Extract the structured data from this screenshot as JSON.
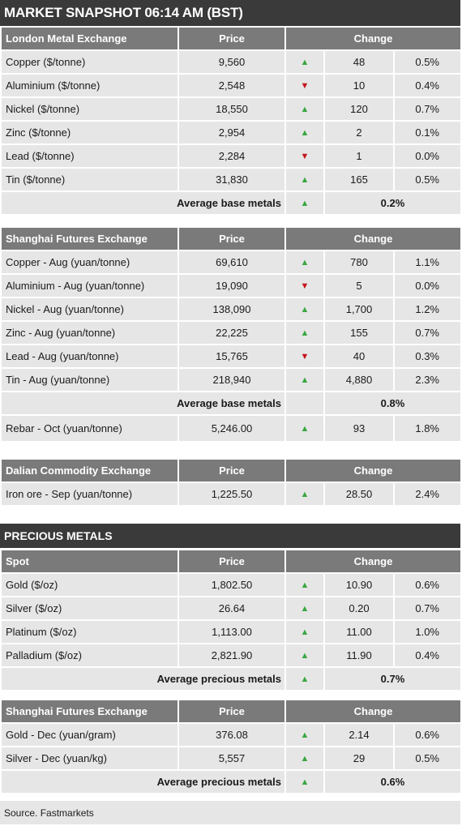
{
  "title": "MARKET SNAPSHOT 06:14 AM (BST)",
  "precious_title": "PRECIOUS METALS",
  "source": "Source. Fastmarkets",
  "colors": {
    "up": "#3aa641",
    "down": "#c4161c",
    "header": "#7a7a7a",
    "band": "#3a3a3a",
    "row": "#e6e6e6"
  },
  "lme": {
    "header": {
      "name": "London Metal Exchange",
      "price": "Price",
      "change": "Change"
    },
    "rows": [
      {
        "name": "Copper ($/tonne)",
        "price": "9,560",
        "dir": "up",
        "arrow": "▲",
        "change": "48",
        "pct": "0.5%"
      },
      {
        "name": "Aluminium ($/tonne)",
        "price": "2,548",
        "dir": "down",
        "arrow": "▼",
        "change": "10",
        "pct": "0.4%"
      },
      {
        "name": "Nickel ($/tonne)",
        "price": "18,550",
        "dir": "up",
        "arrow": "▲",
        "change": "120",
        "pct": "0.7%"
      },
      {
        "name": "Zinc ($/tonne)",
        "price": "2,954",
        "dir": "up",
        "arrow": "▲",
        "change": "2",
        "pct": "0.1%"
      },
      {
        "name": "Lead ($/tonne)",
        "price": "2,284",
        "dir": "down",
        "arrow": "▼",
        "change": "1",
        "pct": "0.0%"
      },
      {
        "name": "Tin ($/tonne)",
        "price": "31,830",
        "dir": "up",
        "arrow": "▲",
        "change": "165",
        "pct": "0.5%"
      }
    ],
    "avg": {
      "label": "Average base metals",
      "arrow": "▲",
      "value": "0.2%"
    }
  },
  "shfe": {
    "header": {
      "name": "Shanghai Futures Exchange",
      "price": "Price",
      "change": "Change"
    },
    "rows": [
      {
        "name": "Copper - Aug (yuan/tonne)",
        "price": "69,610",
        "dir": "up",
        "arrow": "▲",
        "change": "780",
        "pct": "1.1%"
      },
      {
        "name": "Aluminium - Aug (yuan/tonne)",
        "price": "19,090",
        "dir": "down",
        "arrow": "▼",
        "change": "5",
        "pct": "0.0%"
      },
      {
        "name": "Nickel - Aug (yuan/tonne)",
        "price": "138,090",
        "dir": "up",
        "arrow": "▲",
        "change": "1,700",
        "pct": "1.2%"
      },
      {
        "name": "Zinc - Aug (yuan/tonne)",
        "price": "22,225",
        "dir": "up",
        "arrow": "▲",
        "change": "155",
        "pct": "0.7%"
      },
      {
        "name": "Lead - Aug (yuan/tonne)",
        "price": "15,765",
        "dir": "down",
        "arrow": "▼",
        "change": "40",
        "pct": "0.3%"
      },
      {
        "name": "Tin - Aug (yuan/tonne)",
        "price": "218,940",
        "dir": "up",
        "arrow": "▲",
        "change": "4,880",
        "pct": "2.3%"
      }
    ],
    "avg": {
      "label": "Average base metals",
      "value": "0.8%"
    },
    "rebar": {
      "name": "Rebar - Oct (yuan/tonne)",
      "price": "5,246.00",
      "dir": "up",
      "arrow": "▲",
      "change": "93",
      "pct": "1.8%"
    }
  },
  "dce": {
    "header": {
      "name": "Dalian Commodity Exchange",
      "price": "Price",
      "change": "Change"
    },
    "rows": [
      {
        "name": "Iron ore - Sep (yuan/tonne)",
        "price": "1,225.50",
        "dir": "up",
        "arrow": "▲",
        "change": "28.50",
        "pct": "2.4%"
      }
    ]
  },
  "spot": {
    "header": {
      "name": "Spot",
      "price": "Price",
      "change": "Change"
    },
    "rows": [
      {
        "name": "Gold ($/oz)",
        "price": "1,802.50",
        "dir": "up",
        "arrow": "▲",
        "change": "10.90",
        "pct": "0.6%"
      },
      {
        "name": "Silver ($/oz)",
        "price": "26.64",
        "dir": "up",
        "arrow": "▲",
        "change": "0.20",
        "pct": "0.7%"
      },
      {
        "name": "Platinum ($/oz)",
        "price": "1,113.00",
        "dir": "up",
        "arrow": "▲",
        "change": "11.00",
        "pct": "1.0%"
      },
      {
        "name": "Palladium ($/oz)",
        "price": "2,821.90",
        "dir": "up",
        "arrow": "▲",
        "change": "11.90",
        "pct": "0.4%"
      }
    ],
    "avg": {
      "label": "Average precious metals",
      "arrow": "▲",
      "value": "0.7%"
    }
  },
  "shfe_pm": {
    "header": {
      "name": "Shanghai Futures Exchange",
      "price": "Price",
      "change": "Change"
    },
    "rows": [
      {
        "name": "Gold - Dec (yuan/gram)",
        "price": "376.08",
        "dir": "up",
        "arrow": "▲",
        "change": "2.14",
        "pct": "0.6%"
      },
      {
        "name": "Silver - Dec (yuan/kg)",
        "price": "5,557",
        "dir": "up",
        "arrow": "▲",
        "change": "29",
        "pct": "0.5%"
      }
    ],
    "avg": {
      "label": "Average precious metals",
      "arrow": "▲",
      "value": "0.6%"
    }
  }
}
